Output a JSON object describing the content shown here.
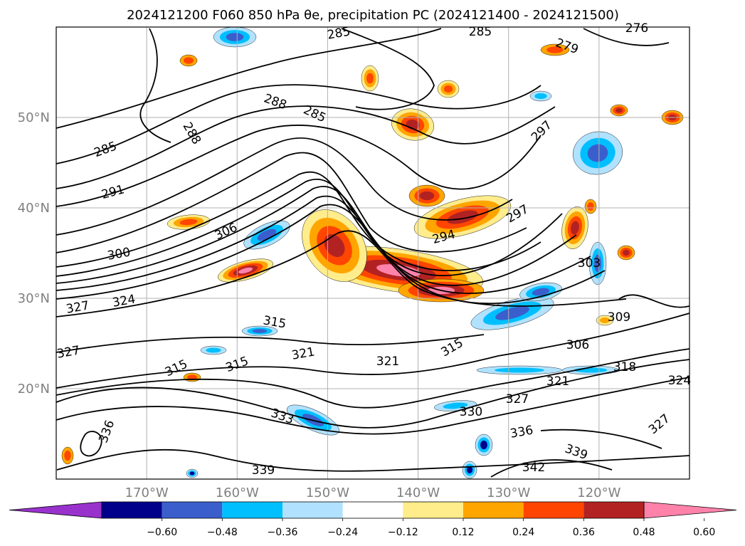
{
  "chart_data": {
    "type": "contour map",
    "title": "2024121200 F060 850 hPa θe, precipitation PC (2024121400 - 2024121500)",
    "x_axis": {
      "range": [
        -180,
        -110
      ],
      "tick_labels": [
        "170°W",
        "160°W",
        "150°W",
        "140°W",
        "130°W",
        "120°W"
      ],
      "tick_values": [
        -170,
        -160,
        -150,
        -140,
        -130,
        -120
      ]
    },
    "y_axis": {
      "range": [
        10,
        60
      ],
      "tick_labels": [
        "50°N",
        "40°N",
        "30°N",
        "20°N"
      ],
      "tick_values": [
        50,
        40,
        30,
        20
      ]
    },
    "grid": true,
    "colorbar": {
      "tick_labels": [
        "−0.60",
        "−0.48",
        "−0.36",
        "−0.24",
        "−0.12",
        "0.12",
        "0.24",
        "0.36",
        "0.48",
        "0.60"
      ],
      "colors": [
        "#9932cc",
        "#00008b",
        "#3a5fcd",
        "#00bfff",
        "#b0e2ff",
        "#ffffff",
        "#ffec8b",
        "#ffa500",
        "#ff4500",
        "#b22222",
        "#ff82ab"
      ],
      "extend": "both"
    },
    "contour_labels": [
      "276",
      "279",
      "285",
      "285",
      "288",
      "288",
      "291",
      "294",
      "297",
      "297",
      "300",
      "303",
      "306",
      "309",
      "315",
      "315",
      "315",
      "318",
      "321",
      "321",
      "321",
      "324",
      "327",
      "327",
      "327",
      "330",
      "333",
      "336",
      "336",
      "339",
      "342",
      "324",
      "327"
    ]
  }
}
